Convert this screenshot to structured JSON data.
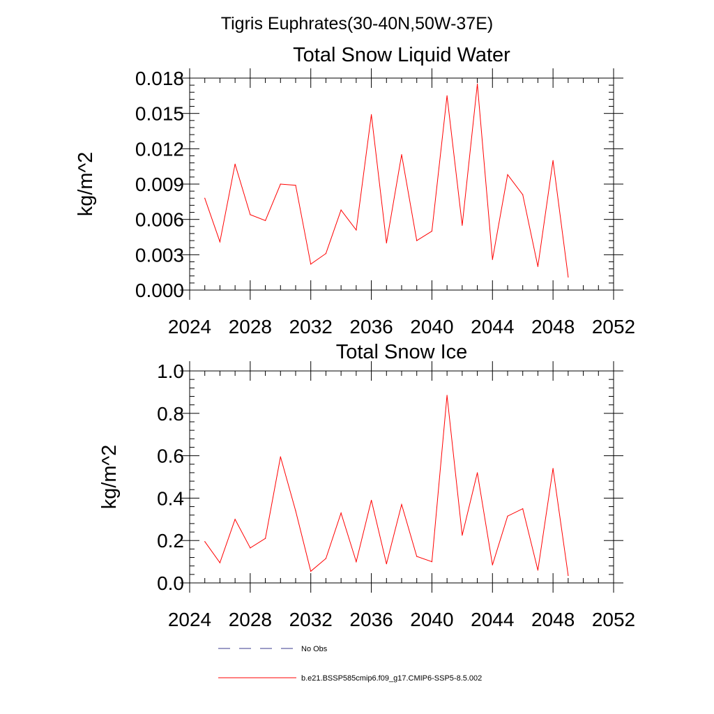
{
  "figure": {
    "suptitle": "Tigris Euphrates(30-40N,50W-37E)"
  },
  "legend": {
    "items": [
      {
        "label": "No Obs",
        "style": "dashed",
        "color": "#3a3a8c"
      },
      {
        "label": "b.e21.BSSP585cmip6.f09_g17.CMIP6-SSP5-8.5.002",
        "style": "solid",
        "color": "#ff0000"
      }
    ]
  },
  "chart_data": [
    {
      "type": "line",
      "title": "Total Snow Liquid Water",
      "xlabel": "",
      "ylabel": "kg/m^2",
      "xlim": [
        2024,
        2052
      ],
      "ylim": [
        0,
        0.018
      ],
      "xticks": [
        2024,
        2028,
        2032,
        2036,
        2040,
        2044,
        2048,
        2052
      ],
      "xtick_labels": [
        "2024",
        "2028",
        "2032",
        "2036",
        "2040",
        "2044",
        "2048",
        "2052"
      ],
      "yticks": [
        0,
        0.003,
        0.006,
        0.009,
        0.012,
        0.015,
        0.018
      ],
      "ytick_labels": [
        "0.000",
        "0.003",
        "0.006",
        "0.009",
        "0.012",
        "0.015",
        "0.018"
      ],
      "grid": false,
      "series": [
        {
          "name": "b.e21.BSSP585cmip6.f09_g17.CMIP6-SSP5-8.5.002",
          "color": "#ff0000",
          "x": [
            2025,
            2026,
            2027,
            2028,
            2029,
            2030,
            2031,
            2032,
            2033,
            2034,
            2035,
            2036,
            2037,
            2038,
            2039,
            2040,
            2041,
            2042,
            2043,
            2044,
            2045,
            2046,
            2047,
            2048,
            2049
          ],
          "y": [
            0.0078,
            0.0041,
            0.0107,
            0.0064,
            0.0059,
            0.009,
            0.0089,
            0.0022,
            0.0031,
            0.0068,
            0.0051,
            0.0149,
            0.004,
            0.0115,
            0.0042,
            0.005,
            0.0165,
            0.0055,
            0.0175,
            0.0026,
            0.0098,
            0.0081,
            0.002,
            0.011,
            0.0011
          ]
        }
      ]
    },
    {
      "type": "line",
      "title": "Total Snow Ice",
      "xlabel": "",
      "ylabel": "kg/m^2",
      "xlim": [
        2024,
        2052
      ],
      "ylim": [
        0,
        1.0
      ],
      "xticks": [
        2024,
        2028,
        2032,
        2036,
        2040,
        2044,
        2048,
        2052
      ],
      "xtick_labels": [
        "2024",
        "2028",
        "2032",
        "2036",
        "2040",
        "2044",
        "2048",
        "2052"
      ],
      "yticks": [
        0,
        0.2,
        0.4,
        0.6,
        0.8,
        1.0
      ],
      "ytick_labels": [
        "0.0",
        "0.2",
        "0.4",
        "0.6",
        "0.8",
        "1.0"
      ],
      "grid": false,
      "series": [
        {
          "name": "b.e21.BSSP585cmip6.f09_g17.CMIP6-SSP5-8.5.002",
          "color": "#ff0000",
          "x": [
            2025,
            2026,
            2027,
            2028,
            2029,
            2030,
            2031,
            2032,
            2033,
            2034,
            2035,
            2036,
            2037,
            2038,
            2039,
            2040,
            2041,
            2042,
            2043,
            2044,
            2045,
            2046,
            2047,
            2048,
            2049
          ],
          "y": [
            0.195,
            0.095,
            0.3,
            0.165,
            0.21,
            0.595,
            0.34,
            0.055,
            0.115,
            0.33,
            0.1,
            0.39,
            0.09,
            0.37,
            0.125,
            0.1,
            0.885,
            0.225,
            0.52,
            0.085,
            0.315,
            0.35,
            0.06,
            0.54,
            0.035
          ]
        }
      ]
    }
  ]
}
